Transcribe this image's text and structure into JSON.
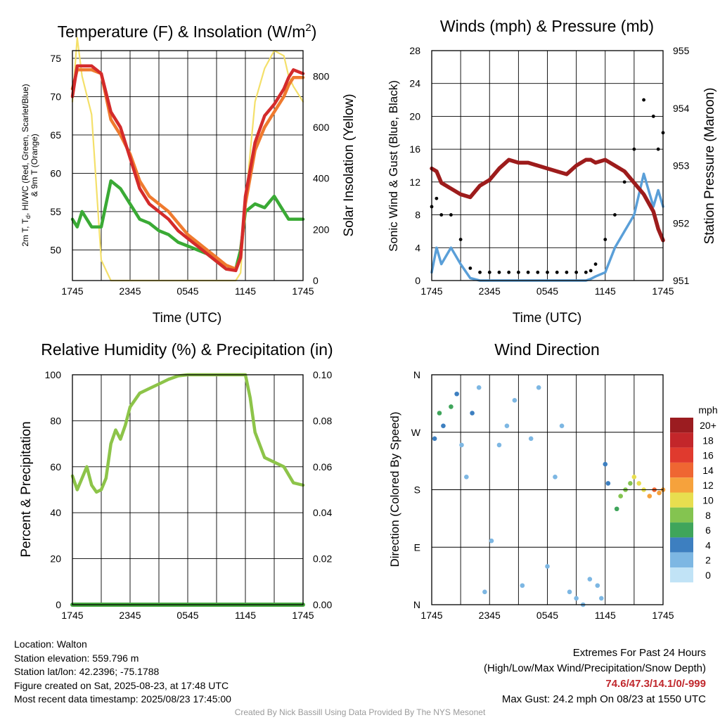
{
  "panels": {
    "temperature": {
      "title": "Temperature (F) & Insolation (W/m",
      "title_sup": "2",
      "title_close": ")",
      "ylabel_left": [
        "2m T, T",
        "d",
        ", HI/WC (Red, Green, Scarlet/Blue)",
        "& 9m T (Orange)"
      ],
      "ylabel_right": "Solar Insolation (Yellow)",
      "xlabel": "Time (UTC)"
    },
    "winds": {
      "title": "Winds (mph) & Pressure (mb)",
      "ylabel_left": "Sonic Wind & Gust (Blue, Black)",
      "ylabel_right": "Station Pressure (Maroon)",
      "xlabel": "Time (UTC)"
    },
    "humidity": {
      "title": "Relative Humidity (%) & Precipitation (in)",
      "ylabel_left": "Percent & Precipitation"
    },
    "direction": {
      "title": "Wind Direction",
      "ylabel_left": "Direction (Colored By Speed)",
      "legend_title": "mph",
      "legend_labels": [
        "20+",
        "18",
        "16",
        "14",
        "12",
        "10",
        "8",
        "6",
        "4",
        "2",
        "0"
      ],
      "legend_colors": [
        "#9b1c20",
        "#c3262a",
        "#e03a2e",
        "#ef6632",
        "#f6a23c",
        "#e8de4f",
        "#84c450",
        "#3fa55b",
        "#3d7fc0",
        "#7db7e3",
        "#c1e3f6"
      ]
    }
  },
  "x_ticks": [
    "1745",
    "2345",
    "0545",
    "1145",
    "1745"
  ],
  "temp_left_ticks": [
    "50",
    "55",
    "60",
    "65",
    "70",
    "75"
  ],
  "temp_right_ticks": [
    "0",
    "200",
    "400",
    "600",
    "800"
  ],
  "wind_left_ticks": [
    "0",
    "4",
    "8",
    "12",
    "16",
    "20",
    "24",
    "28"
  ],
  "wind_right_ticks": [
    "951",
    "952",
    "953",
    "954",
    "955"
  ],
  "rh_left_ticks": [
    "0",
    "20",
    "40",
    "60",
    "80",
    "100"
  ],
  "rh_right_ticks": [
    "0.00",
    "0.02",
    "0.04",
    "0.06",
    "0.08",
    "0.10"
  ],
  "dir_ticks": [
    "N",
    "E",
    "S",
    "W",
    "N"
  ],
  "info": {
    "location": "Location: Walton",
    "elevation": "Station elevation: 559.796 m",
    "latlon": "Station lat/lon: 42.2396; -75.1788",
    "created": "Figure created on Sat, 2025-08-23, at 17:48 UTC",
    "recent": "Most recent data timestamp: 2025/08/23 17:45:00"
  },
  "extremes": {
    "heading": "Extremes For Past 24 Hours",
    "subheading": "(High/Low/Max Wind/Precipitation/Snow Depth)",
    "values": "74.6/47.3/14.1/0/-999",
    "gust": "Max Gust: 24.2 mph On 08/23 at 1550 UTC"
  },
  "credit": "Created By Nick Bassill Using Data Provided By The NYS Mesonet",
  "chart_data": [
    {
      "type": "line",
      "x_hours": [
        0,
        0.5,
        1,
        2,
        3,
        4,
        5,
        6,
        7,
        8,
        9,
        10,
        11,
        12,
        13,
        14,
        15,
        16,
        17,
        17.5,
        18,
        19,
        20,
        21,
        22,
        22.5,
        23,
        24
      ],
      "series": [
        {
          "values": [
            70,
            74,
            74,
            74,
            73,
            68,
            66,
            62,
            58,
            56,
            55,
            54,
            52.5,
            51.5,
            50.5,
            49.5,
            48.5,
            47.5,
            47.3,
            49,
            57,
            64,
            67.5,
            69,
            71,
            72.5,
            73.5,
            73
          ]
        },
        {
          "values": [
            54,
            53,
            55,
            53,
            53,
            59,
            58,
            56,
            54,
            53.5,
            52.5,
            52,
            51,
            50.5,
            50,
            49.5,
            48.5,
            47.5,
            47.5,
            50,
            55,
            56,
            55.5,
            57,
            55,
            54,
            54,
            54
          ]
        },
        {
          "values": [
            71,
            73.5,
            73.5,
            73.5,
            73,
            67,
            65,
            62.5,
            59,
            57,
            56,
            55,
            53.5,
            52,
            51,
            50,
            49,
            48,
            47.5,
            49,
            56,
            63,
            66,
            68,
            70,
            71.5,
            72.5,
            72.5
          ]
        },
        {
          "values": [
            71,
            74,
            74,
            74,
            73,
            68,
            66,
            62,
            58,
            56,
            55,
            54,
            52.5,
            51.5,
            50.5,
            49.5,
            48.5,
            47.5,
            47.3,
            49,
            57,
            64,
            67.5,
            69,
            71,
            72.5,
            73.5,
            73
          ]
        },
        {
          "values": [
            700,
            950,
            800,
            650,
            80,
            0,
            0,
            0,
            0,
            0,
            0,
            0,
            0,
            0,
            0,
            0,
            0,
            0,
            0,
            30,
            300,
            700,
            830,
            900,
            880,
            800,
            760,
            700
          ]
        }
      ],
      "xlim": [
        0,
        24
      ],
      "ylim": [
        46,
        76
      ],
      "y2lim": [
        0,
        900
      ]
    },
    {
      "type": "line",
      "x_hours": [
        0,
        0.5,
        1,
        2,
        3,
        4,
        5,
        6,
        7,
        8,
        9,
        10,
        11,
        12,
        13,
        14,
        15,
        16,
        16.5,
        17,
        18,
        19,
        20,
        21,
        22,
        23,
        23.5,
        24
      ],
      "series": [
        {
          "values": [
            1,
            4,
            2,
            4,
            2,
            0.3,
            0,
            0,
            0,
            0,
            0,
            0,
            0,
            0,
            0,
            0,
            0,
            0,
            0.2,
            0.5,
            1,
            4,
            6,
            8,
            13,
            9,
            11,
            9
          ]
        },
        {
          "values": [
            9,
            10,
            8,
            8,
            5,
            1.5,
            1,
            1,
            1,
            1,
            1,
            1,
            1,
            1,
            1,
            1,
            1,
            1,
            1.2,
            2,
            5,
            8,
            12,
            16,
            22,
            20,
            16,
            18
          ]
        },
        {
          "values": [
            952.95,
            952.9,
            952.7,
            952.6,
            952.5,
            952.45,
            952.65,
            952.75,
            952.95,
            953.1,
            953.05,
            953.05,
            953.0,
            952.95,
            952.9,
            952.85,
            953.0,
            953.1,
            953.1,
            953.05,
            953.1,
            953.0,
            952.9,
            952.7,
            952.5,
            952.2,
            951.9,
            951.7
          ]
        }
      ],
      "xlim": [
        0,
        24
      ],
      "ylim": [
        0,
        28
      ],
      "y2lim": [
        951,
        955
      ]
    },
    {
      "type": "line",
      "x_hours": [
        0,
        0.5,
        1,
        1.5,
        2,
        2.5,
        3,
        3.5,
        4,
        4.5,
        5,
        5.5,
        6,
        7,
        8,
        9,
        10,
        11,
        12,
        13,
        14,
        15,
        16,
        17,
        18,
        18.5,
        19,
        20,
        21,
        22,
        23,
        24
      ],
      "series": [
        {
          "values": [
            56,
            50,
            55,
            60,
            52,
            49,
            50,
            55,
            70,
            76,
            72,
            78,
            86,
            92,
            94,
            96,
            98,
            99.5,
            100,
            100,
            100,
            100,
            100,
            100,
            100,
            90,
            75,
            64,
            62,
            60,
            53,
            52
          ]
        },
        {
          "values": [
            0,
            0,
            0,
            0,
            0,
            0,
            0,
            0,
            0,
            0,
            0,
            0,
            0,
            0,
            0,
            0,
            0,
            0,
            0,
            0,
            0,
            0,
            0,
            0,
            0,
            0,
            0,
            0,
            0,
            0,
            0,
            0
          ]
        }
      ],
      "xlim": [
        0,
        24
      ],
      "ylim": [
        0,
        100
      ],
      "y2lim": [
        0,
        0.1
      ]
    },
    {
      "type": "scatter",
      "x_hours": [
        0.3,
        0.8,
        1.2,
        2.0,
        2.6,
        3.1,
        3.6,
        4.2,
        4.9,
        5.5,
        6.2,
        7.0,
        7.8,
        8.6,
        9.4,
        10.3,
        11.1,
        12.0,
        12.8,
        13.5,
        14.3,
        15.0,
        15.7,
        16.4,
        17.2,
        17.6,
        18.0,
        18.3,
        19.2,
        19.6,
        20.1,
        20.6,
        21.0,
        21.5,
        22.0,
        22.6,
        23.1,
        23.6,
        24.0
      ],
      "series": [
        {
          "values": [
            260,
            300,
            280,
            310,
            330,
            250,
            200,
            300,
            340,
            20,
            100,
            250,
            280,
            320,
            30,
            260,
            340,
            60,
            200,
            280,
            20,
            10,
            0,
            40,
            30,
            10,
            220,
            190,
            150,
            170,
            180,
            190,
            200,
            190,
            180,
            170,
            180,
            175,
            180
          ]
        },
        {
          "values": [
            3,
            5,
            4,
            6,
            3,
            1,
            2,
            4,
            1,
            1,
            1,
            1,
            1,
            1,
            1,
            1,
            1,
            1,
            1,
            1,
            1,
            1,
            1,
            1,
            1,
            1,
            4,
            4,
            5,
            7,
            8,
            8,
            10,
            9,
            10,
            11,
            13,
            12,
            12
          ]
        }
      ],
      "xlim": [
        0,
        24
      ],
      "ylim": [
        0,
        360
      ]
    }
  ]
}
